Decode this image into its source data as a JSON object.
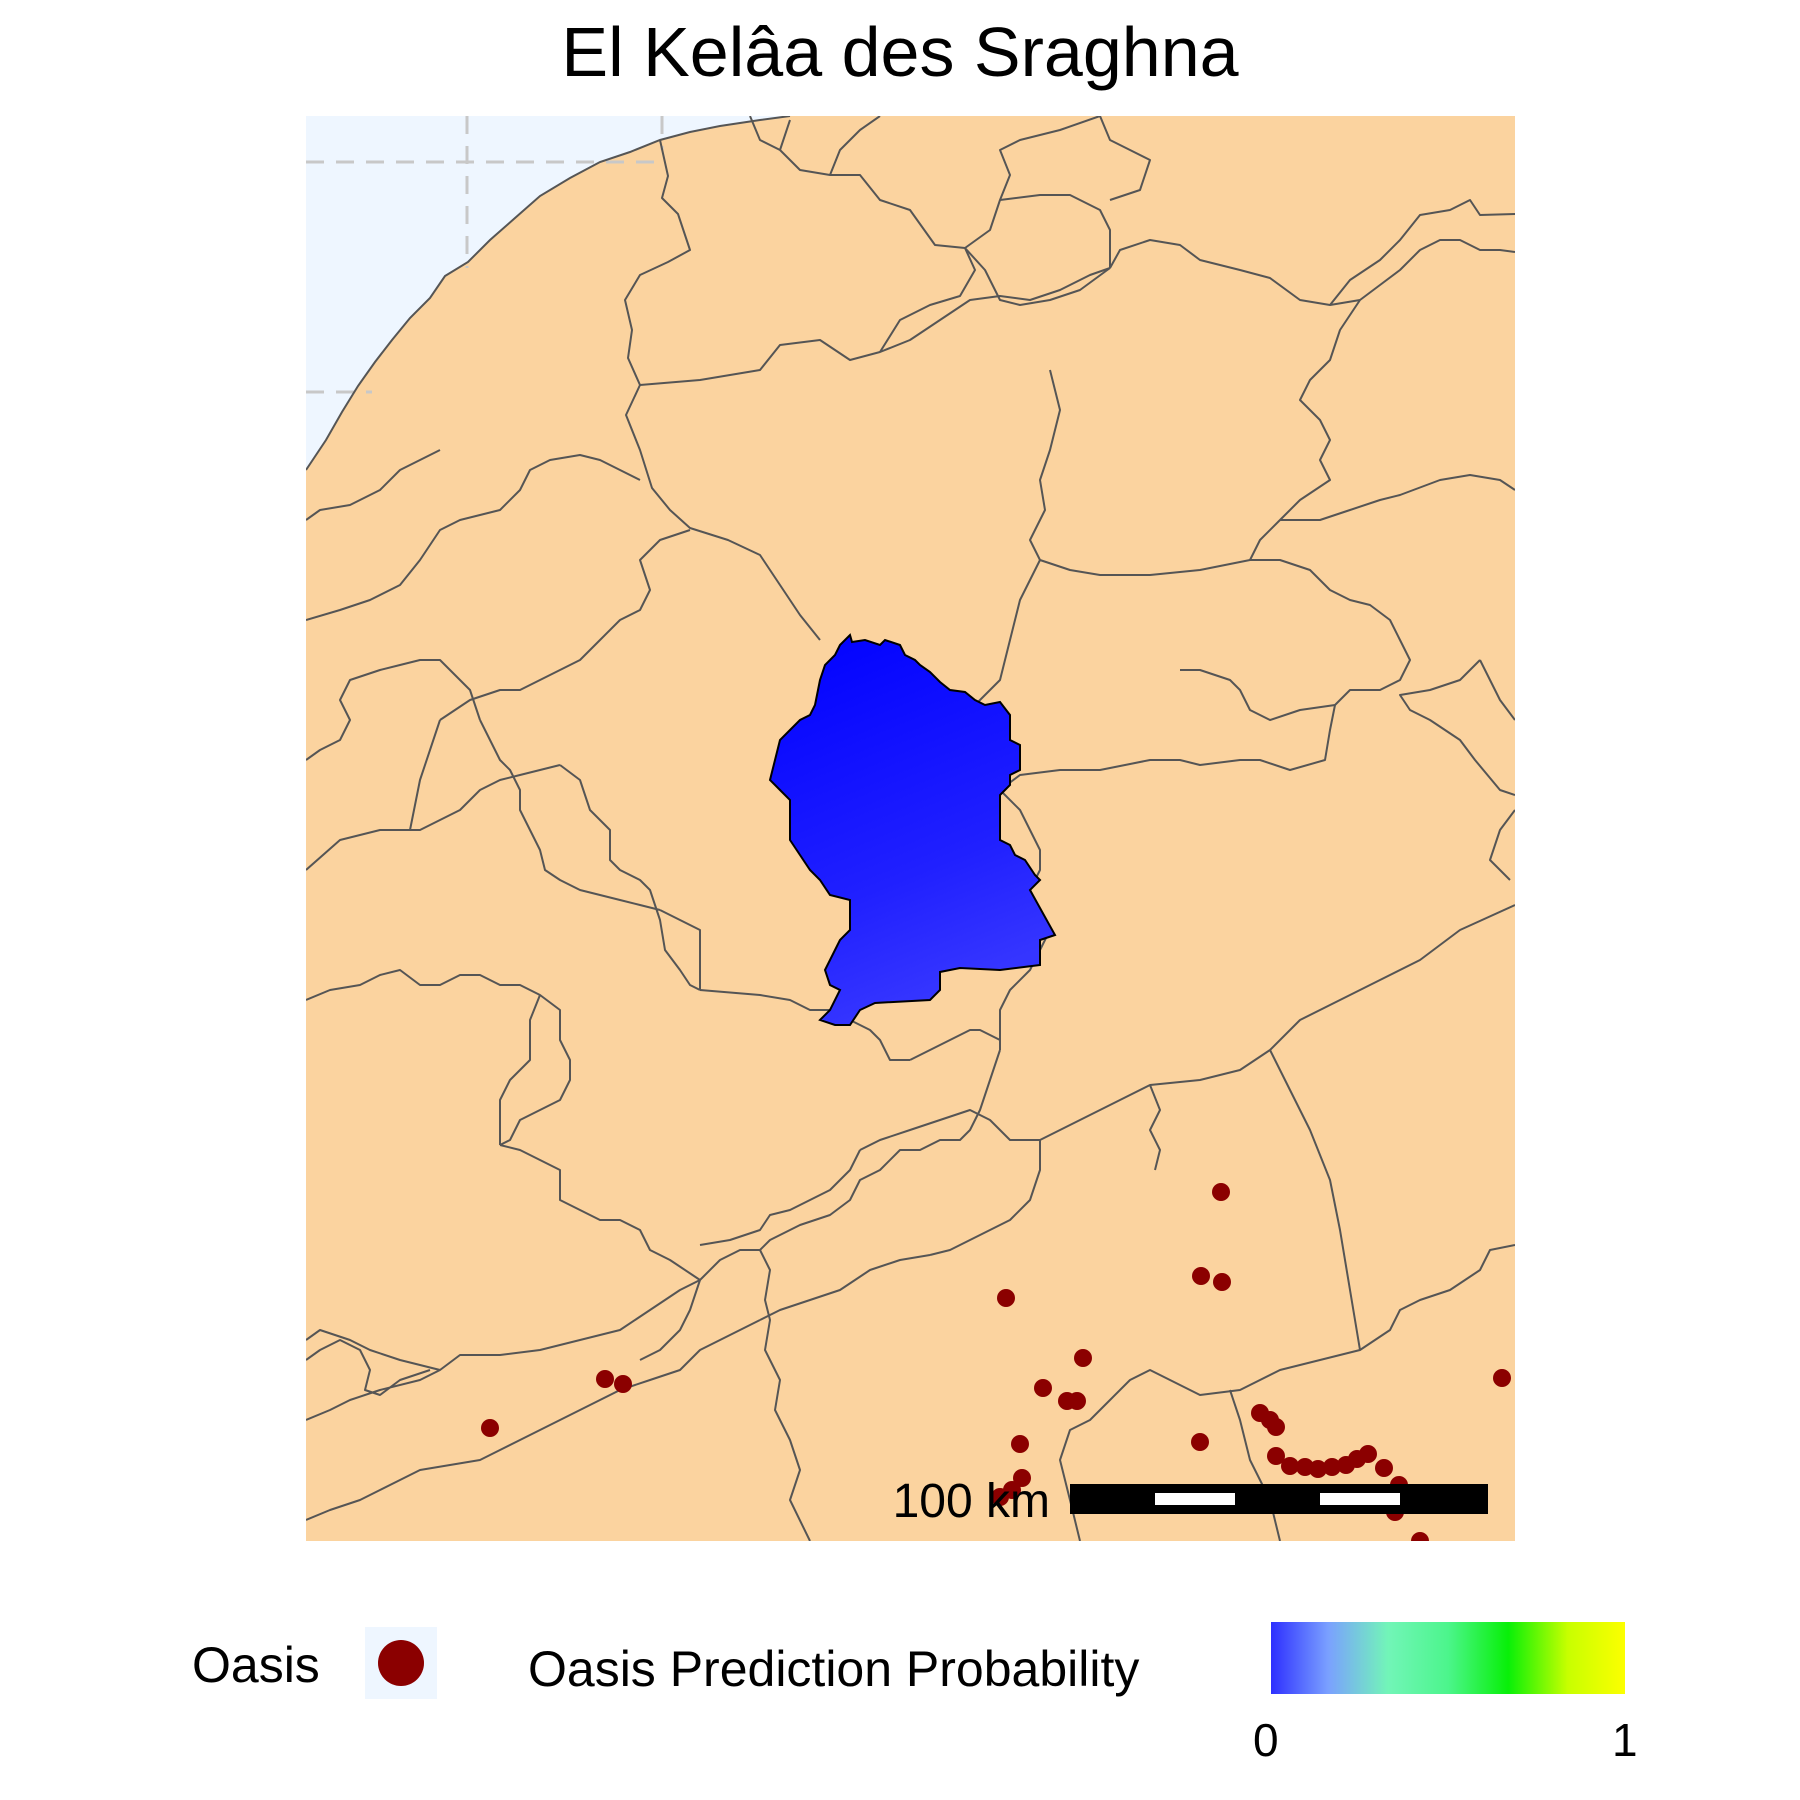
{
  "title": "El Kelâa des Sraghna",
  "colors": {
    "land": "#fbd39f",
    "sea": "#eef6ff",
    "region_fill": "#0a0aff",
    "border": "#555555",
    "oasis": "#8b0000",
    "graticule": "#c8c8c8"
  },
  "scale_bar": {
    "label": "100 km"
  },
  "legend": {
    "oasis_label": "Oasis",
    "probability_label": "Oasis Prediction Probability",
    "colorbar_min": "0",
    "colorbar_max": "1",
    "colorbar_colors": [
      "#2a2aff",
      "#7aa0ff",
      "#72f5b8",
      "#4cf58c",
      "#08f008",
      "#c8ff00",
      "#ffff00"
    ]
  }
}
